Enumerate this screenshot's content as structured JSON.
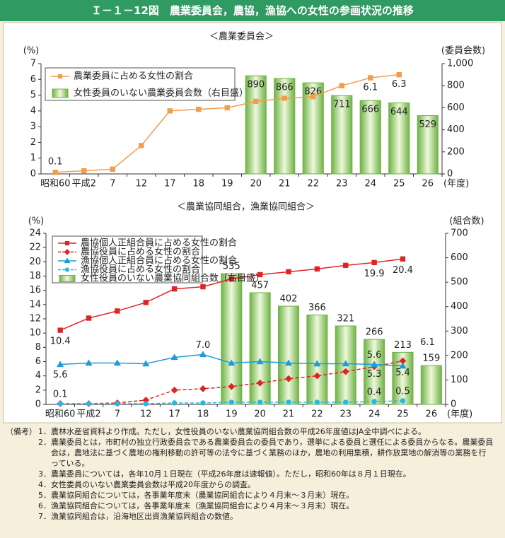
{
  "header": {
    "title": "Ｉ－１－12図　農業委員会，農協，漁協への女性の参画状況の推移"
  },
  "chart_data": [
    {
      "type": "bar-line",
      "title": "＜農業委員会＞",
      "y_label": "(%)",
      "y2_label": "(委員会数)",
      "x_label": "(年度)",
      "categories": [
        "昭和60",
        "平成2",
        "7",
        "12",
        "17",
        "18",
        "19",
        "20",
        "21",
        "22",
        "23",
        "24",
        "25",
        "26"
      ],
      "ylim": [
        0,
        7
      ],
      "yticks": [
        0,
        1,
        2,
        3,
        4,
        5,
        6,
        7
      ],
      "y2lim": [
        0,
        1000
      ],
      "y2ticks": [
        0,
        200,
        400,
        600,
        800,
        {
          "value": 1000,
          "label": "1,000"
        }
      ],
      "series": [
        {
          "name": "農業委員に占める女性の割合",
          "type": "line",
          "marker": "square",
          "dash": false,
          "color": "#f39c4a",
          "values": [
            0.1,
            0.2,
            0.3,
            1.8,
            4.0,
            4.1,
            4.2,
            4.6,
            4.8,
            4.9,
            5.6,
            6.1,
            6.3,
            null
          ],
          "value_labels": [
            "0.1",
            null,
            null,
            null,
            null,
            null,
            null,
            null,
            null,
            null,
            null,
            "6.1",
            "6.3",
            null
          ]
        },
        {
          "name": "女性委員のいない農業委員会数（右目盛）",
          "type": "bar",
          "axis": "y2",
          "color": "#6fb345",
          "values": [
            null,
            null,
            null,
            null,
            null,
            null,
            null,
            890,
            866,
            826,
            711,
            666,
            644,
            529
          ]
        }
      ]
    },
    {
      "type": "bar-line",
      "title": "＜農業協同組合，漁業協同組合＞",
      "y_label": "(%)",
      "y2_label": "(組合数)",
      "x_label": "(年度)",
      "categories": [
        "昭和60",
        "平成2",
        "7",
        "12",
        "17",
        "18",
        "19",
        "20",
        "21",
        "22",
        "23",
        "24",
        "25",
        "26"
      ],
      "ylim": [
        0,
        24
      ],
      "yticks": [
        0,
        2,
        4,
        6,
        8,
        10,
        12,
        14,
        16,
        18,
        20,
        22,
        24
      ],
      "y2lim": [
        0,
        700
      ],
      "y2ticks": [
        0,
        100,
        200,
        300,
        400,
        500,
        600,
        700
      ],
      "series": [
        {
          "name": "農協個人正組合員に占める女性の割合",
          "type": "line",
          "marker": "square",
          "dash": false,
          "color": "#e02424",
          "values": [
            10.4,
            12.1,
            13.1,
            14.3,
            16.2,
            16.5,
            17.6,
            18.2,
            18.6,
            19.0,
            19.5,
            19.9,
            20.4,
            null
          ],
          "value_labels": [
            "10.4",
            null,
            null,
            null,
            null,
            null,
            null,
            null,
            null,
            null,
            null,
            "19.9",
            "20.4",
            null
          ]
        },
        {
          "name": "農協役員に占める女性の割合",
          "type": "line",
          "marker": "diamond",
          "dash": true,
          "color": "#e02424",
          "values": [
            0.1,
            0.1,
            0.2,
            0.6,
            2.0,
            2.2,
            2.5,
            3.0,
            3.6,
            4.0,
            4.6,
            5.3,
            6.1,
            null
          ],
          "value_labels": [
            null,
            null,
            null,
            null,
            null,
            null,
            null,
            null,
            null,
            null,
            null,
            "5.3",
            "6.1",
            null
          ]
        },
        {
          "name": "漁協個人正組合員に占める女性の割合",
          "type": "line",
          "marker": "triangle",
          "dash": false,
          "color": "#1f9bd8",
          "values": [
            5.6,
            5.8,
            5.8,
            5.7,
            6.6,
            7.0,
            5.8,
            6.0,
            5.8,
            5.7,
            5.7,
            5.6,
            5.4,
            null
          ],
          "value_labels": [
            "5.6",
            null,
            null,
            null,
            null,
            "7.0",
            null,
            null,
            null,
            null,
            null,
            "5.6",
            "5.4",
            null
          ]
        },
        {
          "name": "漁協役員に占める女性の割合",
          "type": "line",
          "marker": "circle",
          "dash": true,
          "color": "#2bb5e3",
          "values": [
            0.1,
            0.1,
            0.1,
            0.1,
            0.2,
            0.2,
            0.3,
            0.3,
            0.3,
            0.3,
            0.3,
            0.4,
            0.5,
            null
          ],
          "value_labels": [
            "0.1",
            null,
            null,
            null,
            null,
            null,
            null,
            null,
            null,
            null,
            null,
            "0.4",
            "0.5",
            null
          ]
        },
        {
          "name": "女性役員のいない農業協同組合数（右目盛）",
          "type": "bar",
          "axis": "y2",
          "color": "#6fb345",
          "values": [
            null,
            null,
            null,
            null,
            null,
            null,
            535,
            457,
            402,
            366,
            321,
            266,
            213,
            159
          ]
        }
      ]
    }
  ],
  "notes": {
    "label": "（備考）",
    "items": [
      "1．農林水産省資料より作成。ただし，女性役員のいない農業協同組合数の平成26年度値はJA全中調べによる。",
      "2．農業委員とは，市町村の独立行政委員会である農業委員会の委員であり，選挙による委員と選任による委員からなる。農業委員会は，農地法に基づく農地の権利移動の許可等の法令に基づく業務のほか，農地の利用集積，耕作放棄地の解消等の業務を行っている。",
      "3．農業委員については，各年10月１日現在（平成26年度は速報値）。ただし，昭和60年は８月１日現在。",
      "4．女性委員のいない農業委員会数は平成20年度からの調査。",
      "5．農業協同組合については，各事業年度末（農業協同組合により４月末～３月末）現在。",
      "6．漁業協同組合については，各事業年度末（漁業協同組合により４月末～３月末）現在。",
      "7．漁業協同組合は，沿海地区出資漁業協同組合の数値。"
    ]
  }
}
